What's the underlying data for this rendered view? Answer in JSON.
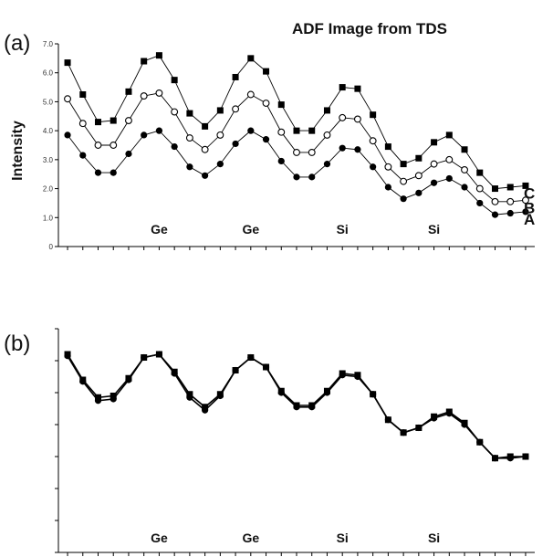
{
  "chart_data": [
    {
      "panel_label": "(a)",
      "type": "line",
      "title": "ADF Image from TDS",
      "xlabel": "",
      "ylabel": "Intensity",
      "ylim": [
        0,
        70
      ],
      "y_ticks": [
        {
          "value": 0,
          "label": "0"
        },
        {
          "value": 10,
          "label": "1.0"
        },
        {
          "value": 20,
          "label": "2.0"
        },
        {
          "value": 30,
          "label": "3.0"
        },
        {
          "value": 40,
          "label": "4.0"
        },
        {
          "value": 50,
          "label": "5.0"
        },
        {
          "value": 60,
          "label": "6.0"
        },
        {
          "value": 70,
          "label": "7.0"
        }
      ],
      "x": [
        1,
        2,
        3,
        4,
        5,
        6,
        7,
        8,
        9,
        10,
        11,
        12,
        13,
        14,
        15,
        16,
        17,
        18,
        19,
        20,
        21,
        22,
        23,
        24,
        25,
        26,
        27,
        28,
        29,
        30,
        31
      ],
      "xlim": [
        0.4,
        31.6
      ],
      "series": [
        {
          "name": "C",
          "marker": "square-filled",
          "values": [
            63.5,
            52.5,
            43.0,
            43.5,
            53.5,
            64.0,
            66.0,
            57.5,
            46.0,
            41.5,
            47.0,
            58.5,
            65.0,
            60.5,
            49.0,
            40.0,
            40.0,
            47.0,
            55.0,
            54.5,
            45.5,
            34.5,
            28.5,
            30.5,
            36.0,
            38.5,
            33.5,
            25.5,
            20.0,
            20.5,
            21.0
          ]
        },
        {
          "name": "B",
          "marker": "circle-open",
          "values": [
            51.0,
            42.5,
            35.0,
            35.0,
            43.5,
            52.0,
            53.0,
            46.5,
            37.5,
            33.5,
            38.5,
            47.5,
            52.5,
            49.5,
            39.5,
            32.5,
            32.5,
            38.5,
            44.5,
            44.0,
            36.5,
            27.5,
            22.5,
            24.5,
            28.5,
            30.0,
            26.5,
            20.0,
            15.5,
            15.5,
            16.0
          ]
        },
        {
          "name": "A",
          "marker": "circle-filled",
          "values": [
            38.5,
            31.5,
            25.5,
            25.5,
            32.0,
            38.5,
            40.0,
            34.5,
            27.5,
            24.5,
            28.5,
            35.5,
            40.0,
            37.0,
            29.5,
            24.0,
            24.0,
            28.5,
            34.0,
            33.5,
            27.5,
            20.5,
            16.5,
            18.5,
            22.0,
            23.5,
            20.5,
            15.0,
            11.0,
            11.5,
            12.0
          ]
        }
      ],
      "annotations": [
        {
          "text": "Ge",
          "x": 7
        },
        {
          "text": "Ge",
          "x": 13
        },
        {
          "text": "Si",
          "x": 19
        },
        {
          "text": "Si",
          "x": 25
        }
      ]
    },
    {
      "panel_label": "(b)",
      "type": "line",
      "ylim": [
        0,
        7
      ],
      "y_tick_count": 7,
      "x": [
        1,
        2,
        3,
        4,
        5,
        6,
        7,
        8,
        9,
        10,
        11,
        12,
        13,
        14,
        15,
        16,
        17,
        18,
        19,
        20,
        21,
        22,
        23,
        24,
        25,
        26,
        27,
        28,
        29,
        30,
        31
      ],
      "xlim": [
        0.4,
        31.6
      ],
      "series": [
        {
          "marker": "square-filled",
          "values": [
            6.2,
            5.4,
            4.85,
            4.9,
            5.45,
            6.1,
            6.2,
            5.65,
            4.95,
            4.55,
            4.95,
            5.7,
            6.1,
            5.8,
            5.05,
            4.6,
            4.6,
            5.05,
            5.6,
            5.55,
            4.95,
            4.15,
            3.75,
            3.9,
            4.25,
            4.4,
            4.05,
            3.45,
            2.95,
            3.0,
            3.0
          ]
        },
        {
          "marker": "circle-filled",
          "values": [
            6.15,
            5.35,
            4.75,
            4.8,
            5.4,
            6.1,
            6.2,
            5.6,
            4.85,
            4.45,
            4.9,
            5.7,
            6.1,
            5.8,
            5.0,
            4.55,
            4.55,
            5.0,
            5.55,
            5.5,
            4.95,
            4.15,
            3.75,
            3.9,
            4.2,
            4.35,
            4.0,
            3.45,
            2.95,
            2.95,
            3.0
          ]
        }
      ],
      "annotations": [
        {
          "text": "Ge",
          "x": 7
        },
        {
          "text": "Ge",
          "x": 13
        },
        {
          "text": "Si",
          "x": 19
        },
        {
          "text": "Si",
          "x": 25
        }
      ]
    }
  ]
}
